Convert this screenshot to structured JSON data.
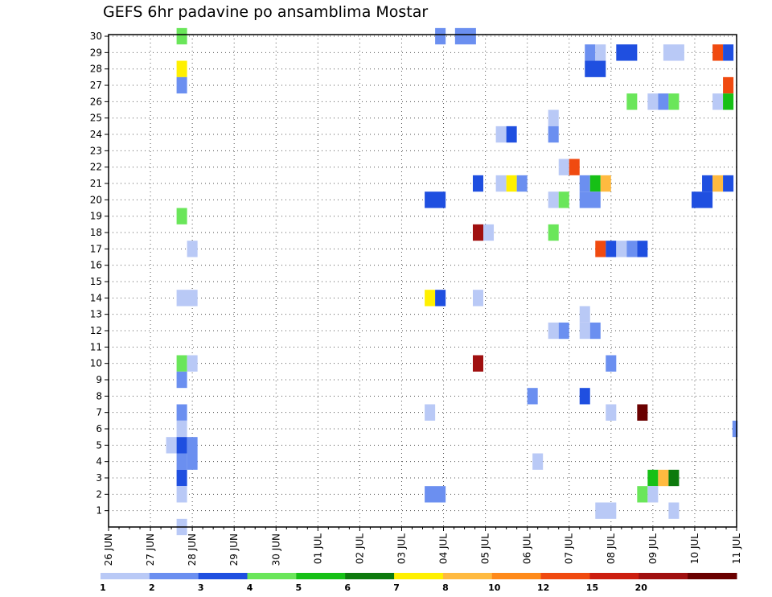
{
  "chart_data": {
    "type": "heatmap",
    "title": "GEFS 6hr padavine po ansamblima Mostar",
    "xlabel": "",
    "ylabel": "",
    "x_ticks": [
      "26 JUN",
      "27 JUN",
      "28 JUN",
      "29 JUN",
      "30 JUN",
      "01 JUL",
      "02 JUL",
      "03 JUL",
      "04 JUL",
      "05 JUL",
      "06 JUL",
      "07 JUL",
      "08 JUL",
      "09 JUL",
      "10 JUL",
      "11 JUL"
    ],
    "y_ticks": [
      1,
      2,
      3,
      4,
      5,
      6,
      7,
      8,
      9,
      10,
      11,
      12,
      13,
      14,
      15,
      16,
      17,
      18,
      19,
      20,
      21,
      22,
      23,
      24,
      25,
      26,
      27,
      28,
      29,
      30
    ],
    "xlim_steps": [
      0,
      60
    ],
    "ylim_members": [
      0,
      30
    ],
    "x_unit": "6-hour steps since 26 JUN 00Z",
    "grid": "dotted",
    "legend_placement": "bottom",
    "color_scale": {
      "bins": [
        {
          "label": "1",
          "color": "#b9c9f6"
        },
        {
          "label": "2",
          "color": "#6b8ff0"
        },
        {
          "label": "3",
          "color": "#1f4fe0"
        },
        {
          "label": "4",
          "color": "#6ae65a"
        },
        {
          "label": "5",
          "color": "#16c016"
        },
        {
          "label": "6",
          "color": "#0d7a0d"
        },
        {
          "label": "7",
          "color": "#fff000"
        },
        {
          "label": "8",
          "color": "#ffba40"
        },
        {
          "label": "10",
          "color": "#ff8a1a"
        },
        {
          "label": "12",
          "color": "#f04a10"
        },
        {
          "label": "15",
          "color": "#cc1e10"
        },
        {
          "label": "20",
          "color": "#a01010"
        },
        {
          "label": "",
          "color": "#6a0000"
        }
      ]
    },
    "cells": [
      {
        "m": 30,
        "s": 6.5,
        "c": 4,
        "w": 1
      },
      {
        "m": 30,
        "s": 31.2,
        "c": 2,
        "w": 1
      },
      {
        "m": 30,
        "s": 33.1,
        "c": 2,
        "w": 2
      },
      {
        "m": 29,
        "s": 45.5,
        "c": 2,
        "w": 1
      },
      {
        "m": 29,
        "s": 46.5,
        "c": 1,
        "w": 1
      },
      {
        "m": 29,
        "s": 48.5,
        "c": 3,
        "w": 2
      },
      {
        "m": 29,
        "s": 53,
        "c": 1,
        "w": 2
      },
      {
        "m": 29,
        "s": 57.7,
        "c": 10,
        "w": 1
      },
      {
        "m": 29,
        "s": 58.7,
        "c": 3,
        "w": 1
      },
      {
        "m": 28,
        "s": 6.5,
        "c": 7,
        "w": 1
      },
      {
        "m": 28,
        "s": 45.5,
        "c": 3,
        "w": 2
      },
      {
        "m": 27,
        "s": 6.5,
        "c": 2,
        "w": 1
      },
      {
        "m": 27,
        "s": 58.7,
        "c": 10,
        "w": 1
      },
      {
        "m": 26,
        "s": 49.5,
        "c": 4,
        "w": 1
      },
      {
        "m": 26,
        "s": 51.5,
        "c": 1,
        "w": 1
      },
      {
        "m": 26,
        "s": 52.5,
        "c": 2,
        "w": 1
      },
      {
        "m": 26,
        "s": 53.5,
        "c": 4,
        "w": 1
      },
      {
        "m": 26,
        "s": 57.7,
        "c": 1,
        "w": 1
      },
      {
        "m": 26,
        "s": 58.7,
        "c": 5,
        "w": 1
      },
      {
        "m": 25,
        "s": 42,
        "c": 1,
        "w": 1
      },
      {
        "m": 24,
        "s": 37,
        "c": 1,
        "w": 1
      },
      {
        "m": 24,
        "s": 38,
        "c": 3,
        "w": 1
      },
      {
        "m": 24,
        "s": 42,
        "c": 2,
        "w": 1
      },
      {
        "m": 22,
        "s": 43,
        "c": 1,
        "w": 1
      },
      {
        "m": 22,
        "s": 44,
        "c": 10,
        "w": 1
      },
      {
        "m": 21,
        "s": 34.8,
        "c": 3,
        "w": 1
      },
      {
        "m": 21,
        "s": 37,
        "c": 1,
        "w": 1
      },
      {
        "m": 21,
        "s": 38,
        "c": 7,
        "w": 1
      },
      {
        "m": 21,
        "s": 39,
        "c": 2,
        "w": 1
      },
      {
        "m": 21,
        "s": 45,
        "c": 2,
        "w": 1
      },
      {
        "m": 21,
        "s": 46,
        "c": 5,
        "w": 1
      },
      {
        "m": 21,
        "s": 47,
        "c": 8,
        "w": 1
      },
      {
        "m": 21,
        "s": 56.7,
        "c": 3,
        "w": 1
      },
      {
        "m": 21,
        "s": 57.7,
        "c": 8,
        "w": 1
      },
      {
        "m": 21,
        "s": 58.7,
        "c": 3,
        "w": 1
      },
      {
        "m": 20,
        "s": 30.2,
        "c": 3,
        "w": 2
      },
      {
        "m": 20,
        "s": 42,
        "c": 1,
        "w": 1
      },
      {
        "m": 20,
        "s": 43,
        "c": 4,
        "w": 1
      },
      {
        "m": 20,
        "s": 45,
        "c": 2,
        "w": 2
      },
      {
        "m": 20,
        "s": 55.7,
        "c": 3,
        "w": 2
      },
      {
        "m": 19,
        "s": 6.5,
        "c": 4,
        "w": 1
      },
      {
        "m": 18,
        "s": 34.8,
        "c": 12,
        "w": 1
      },
      {
        "m": 18,
        "s": 35.8,
        "c": 1,
        "w": 1
      },
      {
        "m": 18,
        "s": 42,
        "c": 4,
        "w": 1
      },
      {
        "m": 17,
        "s": 7.5,
        "c": 1,
        "w": 1
      },
      {
        "m": 17,
        "s": 46.5,
        "c": 10,
        "w": 1
      },
      {
        "m": 17,
        "s": 47.5,
        "c": 3,
        "w": 1
      },
      {
        "m": 17,
        "s": 48.5,
        "c": 1,
        "w": 1
      },
      {
        "m": 17,
        "s": 49.5,
        "c": 2,
        "w": 1
      },
      {
        "m": 17,
        "s": 50.5,
        "c": 3,
        "w": 1
      },
      {
        "m": 14,
        "s": 6.5,
        "c": 1,
        "w": 2
      },
      {
        "m": 14,
        "s": 30.2,
        "c": 7,
        "w": 1
      },
      {
        "m": 14,
        "s": 31.2,
        "c": 3,
        "w": 1
      },
      {
        "m": 14,
        "s": 34.8,
        "c": 1,
        "w": 1
      },
      {
        "m": 13,
        "s": 45,
        "c": 1,
        "w": 1
      },
      {
        "m": 12,
        "s": 42,
        "c": 1,
        "w": 1
      },
      {
        "m": 12,
        "s": 43,
        "c": 2,
        "w": 1
      },
      {
        "m": 12,
        "s": 45,
        "c": 1,
        "w": 1
      },
      {
        "m": 12,
        "s": 46,
        "c": 2,
        "w": 1
      },
      {
        "m": 10,
        "s": 6.5,
        "c": 4,
        "w": 1
      },
      {
        "m": 10,
        "s": 7.5,
        "c": 1,
        "w": 1
      },
      {
        "m": 10,
        "s": 34.8,
        "c": 12,
        "w": 1
      },
      {
        "m": 10,
        "s": 47.5,
        "c": 2,
        "w": 1
      },
      {
        "m": 9,
        "s": 6.5,
        "c": 2,
        "w": 1
      },
      {
        "m": 8,
        "s": 40,
        "c": 2,
        "w": 1
      },
      {
        "m": 8,
        "s": 45,
        "c": 3,
        "w": 1
      },
      {
        "m": 7,
        "s": 6.5,
        "c": 2,
        "w": 1
      },
      {
        "m": 7,
        "s": 30.2,
        "c": 1,
        "w": 1
      },
      {
        "m": 7,
        "s": 47.5,
        "c": 1,
        "w": 1
      },
      {
        "m": 7,
        "s": 50.5,
        "c": 13,
        "w": 1
      },
      {
        "m": 6,
        "s": 6.5,
        "c": 1,
        "w": 1
      },
      {
        "m": 6,
        "s": 59.6,
        "c": 2,
        "w": 0.5
      },
      {
        "m": 5,
        "s": 5.5,
        "c": 1,
        "w": 1
      },
      {
        "m": 5,
        "s": 6.5,
        "c": 3,
        "w": 1
      },
      {
        "m": 5,
        "s": 7.5,
        "c": 2,
        "w": 1
      },
      {
        "m": 4,
        "s": 6.5,
        "c": 2,
        "w": 1
      },
      {
        "m": 4,
        "s": 7.5,
        "c": 2,
        "w": 1
      },
      {
        "m": 4,
        "s": 40.5,
        "c": 1,
        "w": 1
      },
      {
        "m": 3,
        "s": 6.5,
        "c": 3,
        "w": 1
      },
      {
        "m": 3,
        "s": 51.5,
        "c": 5,
        "w": 1
      },
      {
        "m": 3,
        "s": 52.5,
        "c": 8,
        "w": 1
      },
      {
        "m": 3,
        "s": 53.5,
        "c": 6,
        "w": 1
      },
      {
        "m": 2,
        "s": 6.5,
        "c": 1,
        "w": 1
      },
      {
        "m": 2,
        "s": 30.2,
        "c": 2,
        "w": 2
      },
      {
        "m": 2,
        "s": 50.5,
        "c": 4,
        "w": 1
      },
      {
        "m": 2,
        "s": 51.5,
        "c": 1,
        "w": 1
      },
      {
        "m": 1,
        "s": 46.5,
        "c": 1,
        "w": 2
      },
      {
        "m": 1,
        "s": 53.5,
        "c": 1,
        "w": 1
      },
      {
        "m": 0,
        "s": 6.5,
        "c": 1,
        "w": 1
      }
    ]
  }
}
